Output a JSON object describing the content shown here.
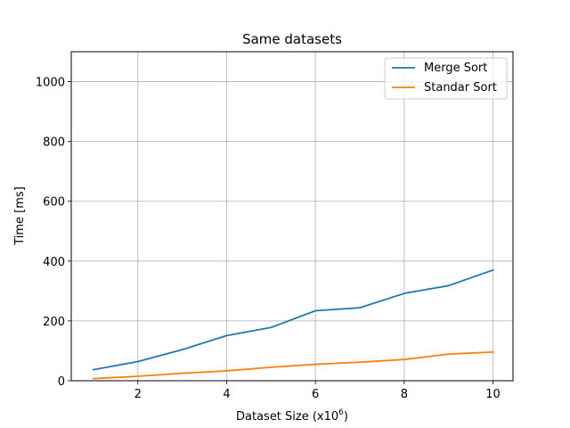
{
  "chart_data": {
    "type": "line",
    "title": "Same datasets",
    "xlabel": "Dataset Size (x10",
    "xlabel_exp": "6",
    "xlabel_tail": ")",
    "ylabel": "Time [ms]",
    "xlim": [
      0.5,
      10.45
    ],
    "ylim": [
      0,
      1100
    ],
    "xticks": [
      2,
      4,
      6,
      8,
      10
    ],
    "yticks": [
      0,
      200,
      400,
      600,
      800,
      1000
    ],
    "grid": true,
    "legend_position": "top-right",
    "x": [
      1,
      2,
      3,
      4,
      5,
      6,
      7,
      8,
      9,
      10
    ],
    "series": [
      {
        "name": "Merge Sort",
        "color": "#1f77b4",
        "values": [
          37,
          64,
          104,
          151,
          178,
          234,
          244,
          292,
          318,
          370
        ]
      },
      {
        "name": "Standar Sort",
        "color": "#ff7f0e",
        "values": [
          7,
          15,
          25,
          33,
          45,
          55,
          62,
          71,
          89,
          96
        ]
      }
    ]
  }
}
